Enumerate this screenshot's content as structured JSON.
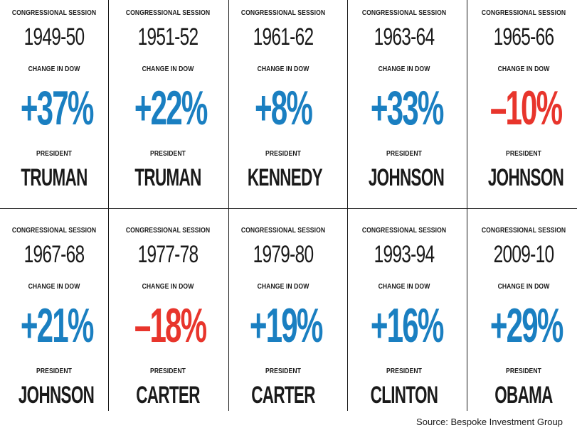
{
  "colors": {
    "positive": "#1a7fc1",
    "negative": "#e8352c",
    "text": "#1a1a1a"
  },
  "labels": {
    "session": "CONGRESSIONAL SESSION",
    "change": "CHANGE IN DOW",
    "president": "PRESIDENT"
  },
  "source": "Source: Bespoke Investment Group",
  "chart_data": {
    "type": "table",
    "title": "",
    "columns": [
      "CONGRESSIONAL SESSION",
      "CHANGE IN DOW",
      "PRESIDENT"
    ],
    "rows": [
      {
        "session": "1949-50",
        "change": "+37%",
        "value": 37,
        "president": "TRUMAN"
      },
      {
        "session": "1951-52",
        "change": "+22%",
        "value": 22,
        "president": "TRUMAN"
      },
      {
        "session": "1961-62",
        "change": "+8%",
        "value": 8,
        "president": "KENNEDY"
      },
      {
        "session": "1963-64",
        "change": "+33%",
        "value": 33,
        "president": "JOHNSON"
      },
      {
        "session": "1965-66",
        "change": "–10%",
        "value": -10,
        "president": "JOHNSON"
      },
      {
        "session": "1967-68",
        "change": "+21%",
        "value": 21,
        "president": "JOHNSON"
      },
      {
        "session": "1977-78",
        "change": "–18%",
        "value": -18,
        "president": "CARTER"
      },
      {
        "session": "1979-80",
        "change": "+19%",
        "value": 19,
        "president": "CARTER"
      },
      {
        "session": "1993-94",
        "change": "+16%",
        "value": 16,
        "president": "CLINTON"
      },
      {
        "session": "2009-10",
        "change": "+29%",
        "value": 29,
        "president": "OBAMA"
      }
    ]
  }
}
